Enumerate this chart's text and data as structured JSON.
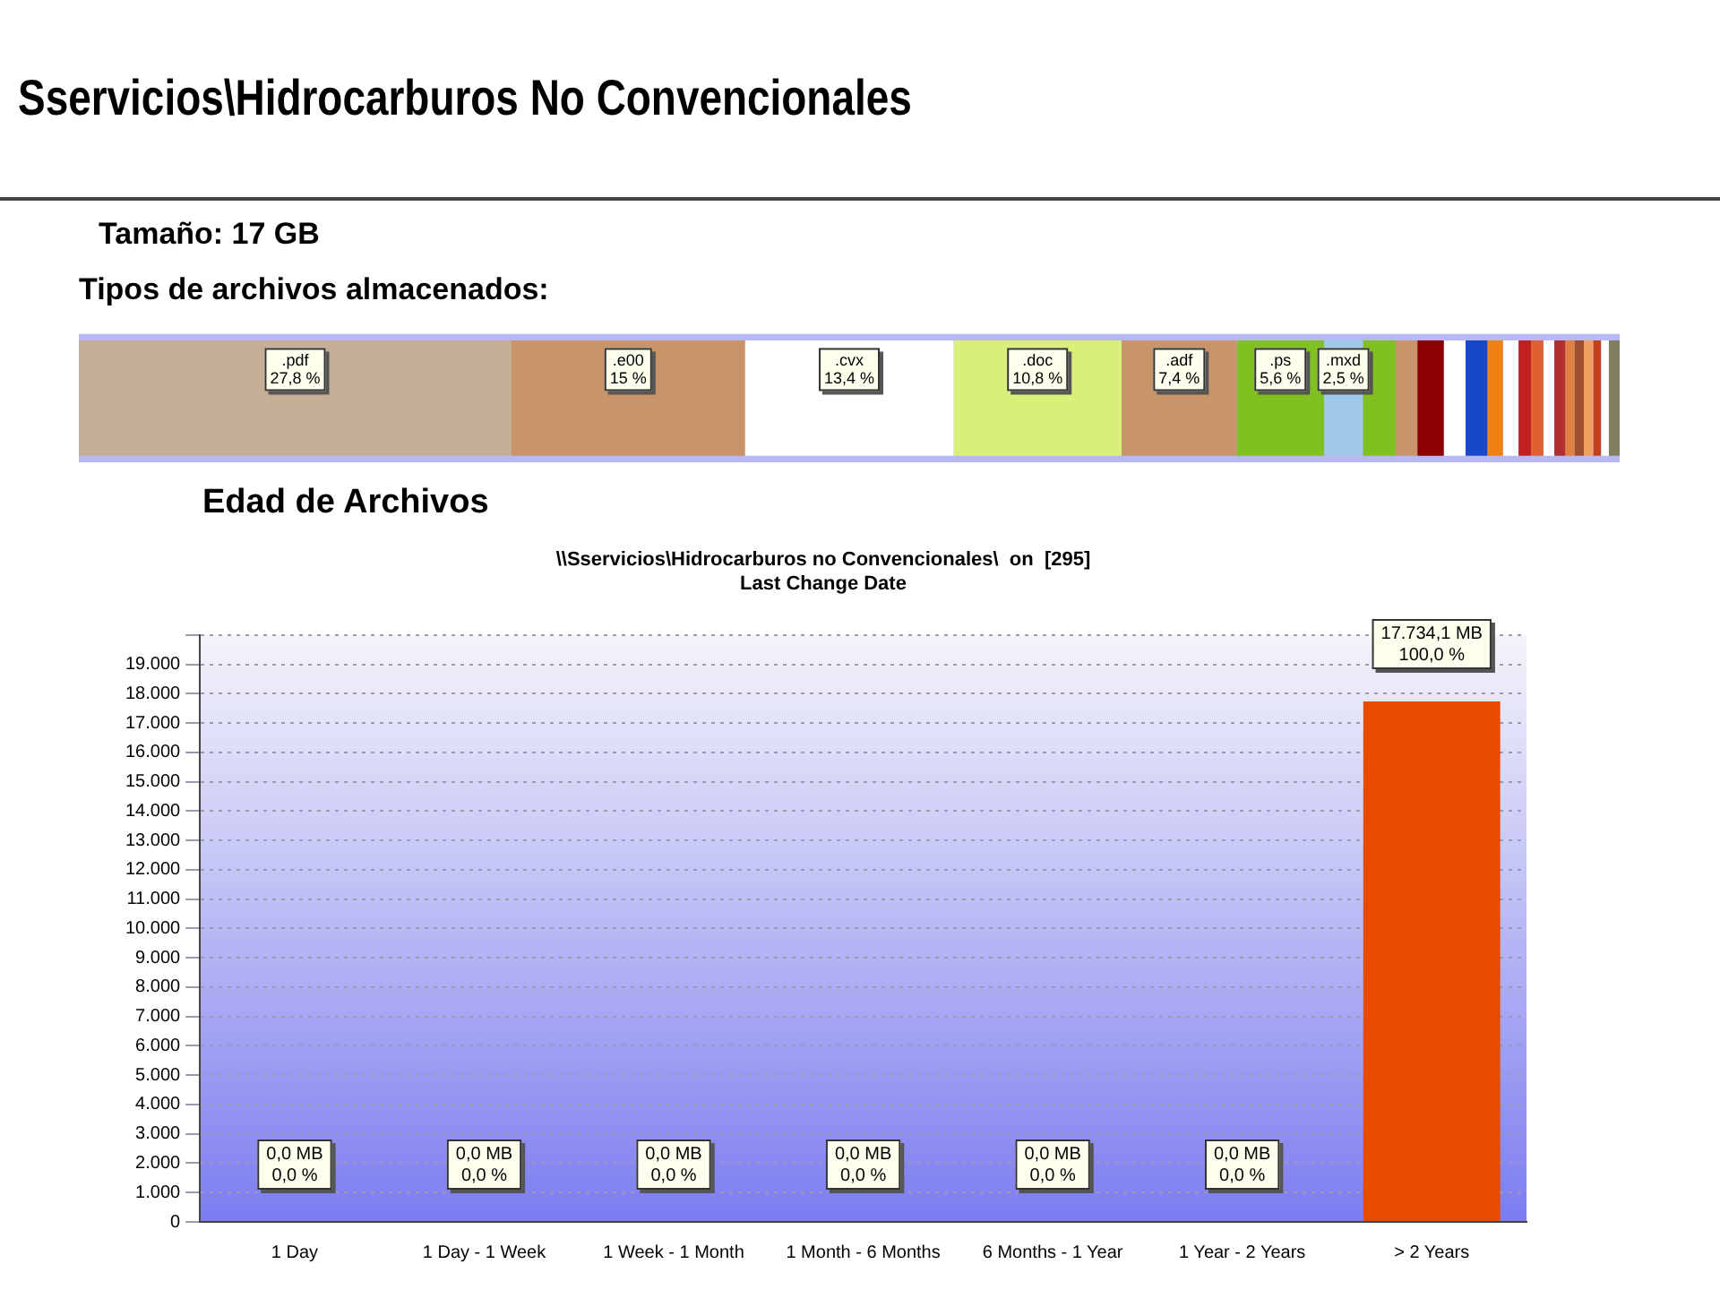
{
  "chart_data": [
    {
      "type": "bar",
      "orientation": "horizontal",
      "stacked": true,
      "title": "Tipos de archivos almacenados:",
      "annotations": [
        "Sservicios\\Hidrocarburos No Convencionales",
        "Tamaño: 17 GB"
      ],
      "categories": [
        null
      ],
      "legend": false,
      "tick_labels": false,
      "grid": false,
      "series": [
        {
          "name": ".pdf",
          "color": "#c4ae98",
          "values": [
            27.8
          ],
          "value_labels": [
            "27,8 %"
          ]
        },
        {
          "name": ".e00",
          "color": "#c8956a",
          "values": [
            15
          ],
          "value_labels": [
            "15 %"
          ]
        },
        {
          "name": ".cvx",
          "color": "#ffffff",
          "values": [
            13.4
          ],
          "value_labels": [
            "13,4 %"
          ]
        },
        {
          "name": ".doc",
          "color": "#d8f07a",
          "values": [
            10.8
          ],
          "value_labels": [
            "10,8 %"
          ]
        },
        {
          "name": ".adf",
          "color": "#c8956a",
          "values": [
            7.4
          ],
          "value_labels": [
            "7,4 %"
          ]
        },
        {
          "name": ".ps",
          "color": "#80c020",
          "values": [
            5.6
          ],
          "value_labels": [
            "5,6 %"
          ]
        },
        {
          "name": ".mxd",
          "color": "#a0c8e8",
          "values": [
            2.5
          ],
          "value_labels": [
            "2,5 %"
          ]
        },
        {
          "color": "#80c020",
          "values": [
            2.1
          ]
        },
        {
          "color": "#c8956a",
          "values": [
            1.4
          ]
        },
        {
          "color": "#8b0000",
          "values": [
            1.7
          ]
        },
        {
          "color": "#ffffff",
          "values": [
            1.4
          ]
        },
        {
          "color": "#1848c8",
          "values": [
            1.4
          ]
        },
        {
          "color": "#f08010",
          "values": [
            1.0
          ]
        },
        {
          "color": "#ffffff",
          "values": [
            1.0
          ]
        },
        {
          "color": "#c02020",
          "values": [
            0.8
          ]
        },
        {
          "color": "#e06030",
          "values": [
            0.8
          ]
        },
        {
          "color": "#ffffff",
          "values": [
            0.7
          ]
        },
        {
          "color": "#b03030",
          "values": [
            0.7
          ]
        },
        {
          "color": "#e08040",
          "values": [
            0.6
          ]
        },
        {
          "color": "#a05030",
          "values": [
            0.6
          ]
        },
        {
          "color": "#f0a060",
          "values": [
            0.6
          ]
        },
        {
          "color": "#c04020",
          "values": [
            0.5
          ]
        },
        {
          "color": "#ffffff",
          "values": [
            0.5
          ]
        },
        {
          "color": "#808060",
          "values": [
            0.7
          ]
        }
      ]
    },
    {
      "type": "bar",
      "title": "\\\\Sservicios\\Hidrocarburos no Convencionales\\  on  [295]",
      "subtitle": "Last Change Date",
      "annotations": [
        "Edad de Archivos"
      ],
      "legend": false,
      "grid": "y",
      "categories": [
        "1 Day",
        "1 Day - 1 Week",
        "1 Week - 1 Month",
        "1 Month - 6 Months",
        "6 Months - 1 Year",
        "1 Year - 2 Years",
        "> 2 Years"
      ],
      "values": [
        0,
        0,
        0,
        0,
        0,
        0,
        17734.1
      ],
      "value_labels": [
        "0,0 MB\n0,0 %",
        "0,0 MB\n0,0 %",
        "0,0 MB\n0,0 %",
        "0,0 MB\n0,0 %",
        "0,0 MB\n0,0 %",
        "0,0 MB\n0,0 %",
        "17.734,1 MB\n100,0 %"
      ],
      "colors": [
        "#008800",
        "#008800",
        "#4a8a00",
        "#9a9a00",
        "#a06a00",
        "#a03000",
        "#e84a00"
      ],
      "ylim": [
        0,
        20000
      ],
      "yticks": [
        0,
        {
          "value": 1000,
          "label": "1.000"
        },
        {
          "value": 2000,
          "label": "2.000"
        },
        {
          "value": 3000,
          "label": "3.000"
        },
        {
          "value": 4000,
          "label": "4.000"
        },
        {
          "value": 5000,
          "label": "5.000"
        },
        {
          "value": 6000,
          "label": "6.000"
        },
        {
          "value": 7000,
          "label": "7.000"
        },
        {
          "value": 8000,
          "label": "8.000"
        },
        {
          "value": 9000,
          "label": "9.000"
        },
        {
          "value": 10000,
          "label": "10.000"
        },
        {
          "value": 11000,
          "label": "11.000"
        },
        {
          "value": 12000,
          "label": "12.000"
        },
        {
          "value": 13000,
          "label": "13.000"
        },
        {
          "value": 14000,
          "label": "14.000"
        },
        {
          "value": 15000,
          "label": "15.000"
        },
        {
          "value": 16000,
          "label": "16.000"
        },
        {
          "value": 17000,
          "label": "17.000"
        },
        {
          "value": 18000,
          "label": "18.000"
        },
        {
          "value": 19000,
          "label": "19.000"
        },
        {
          "value": 20000,
          "label": null
        }
      ]
    }
  ]
}
